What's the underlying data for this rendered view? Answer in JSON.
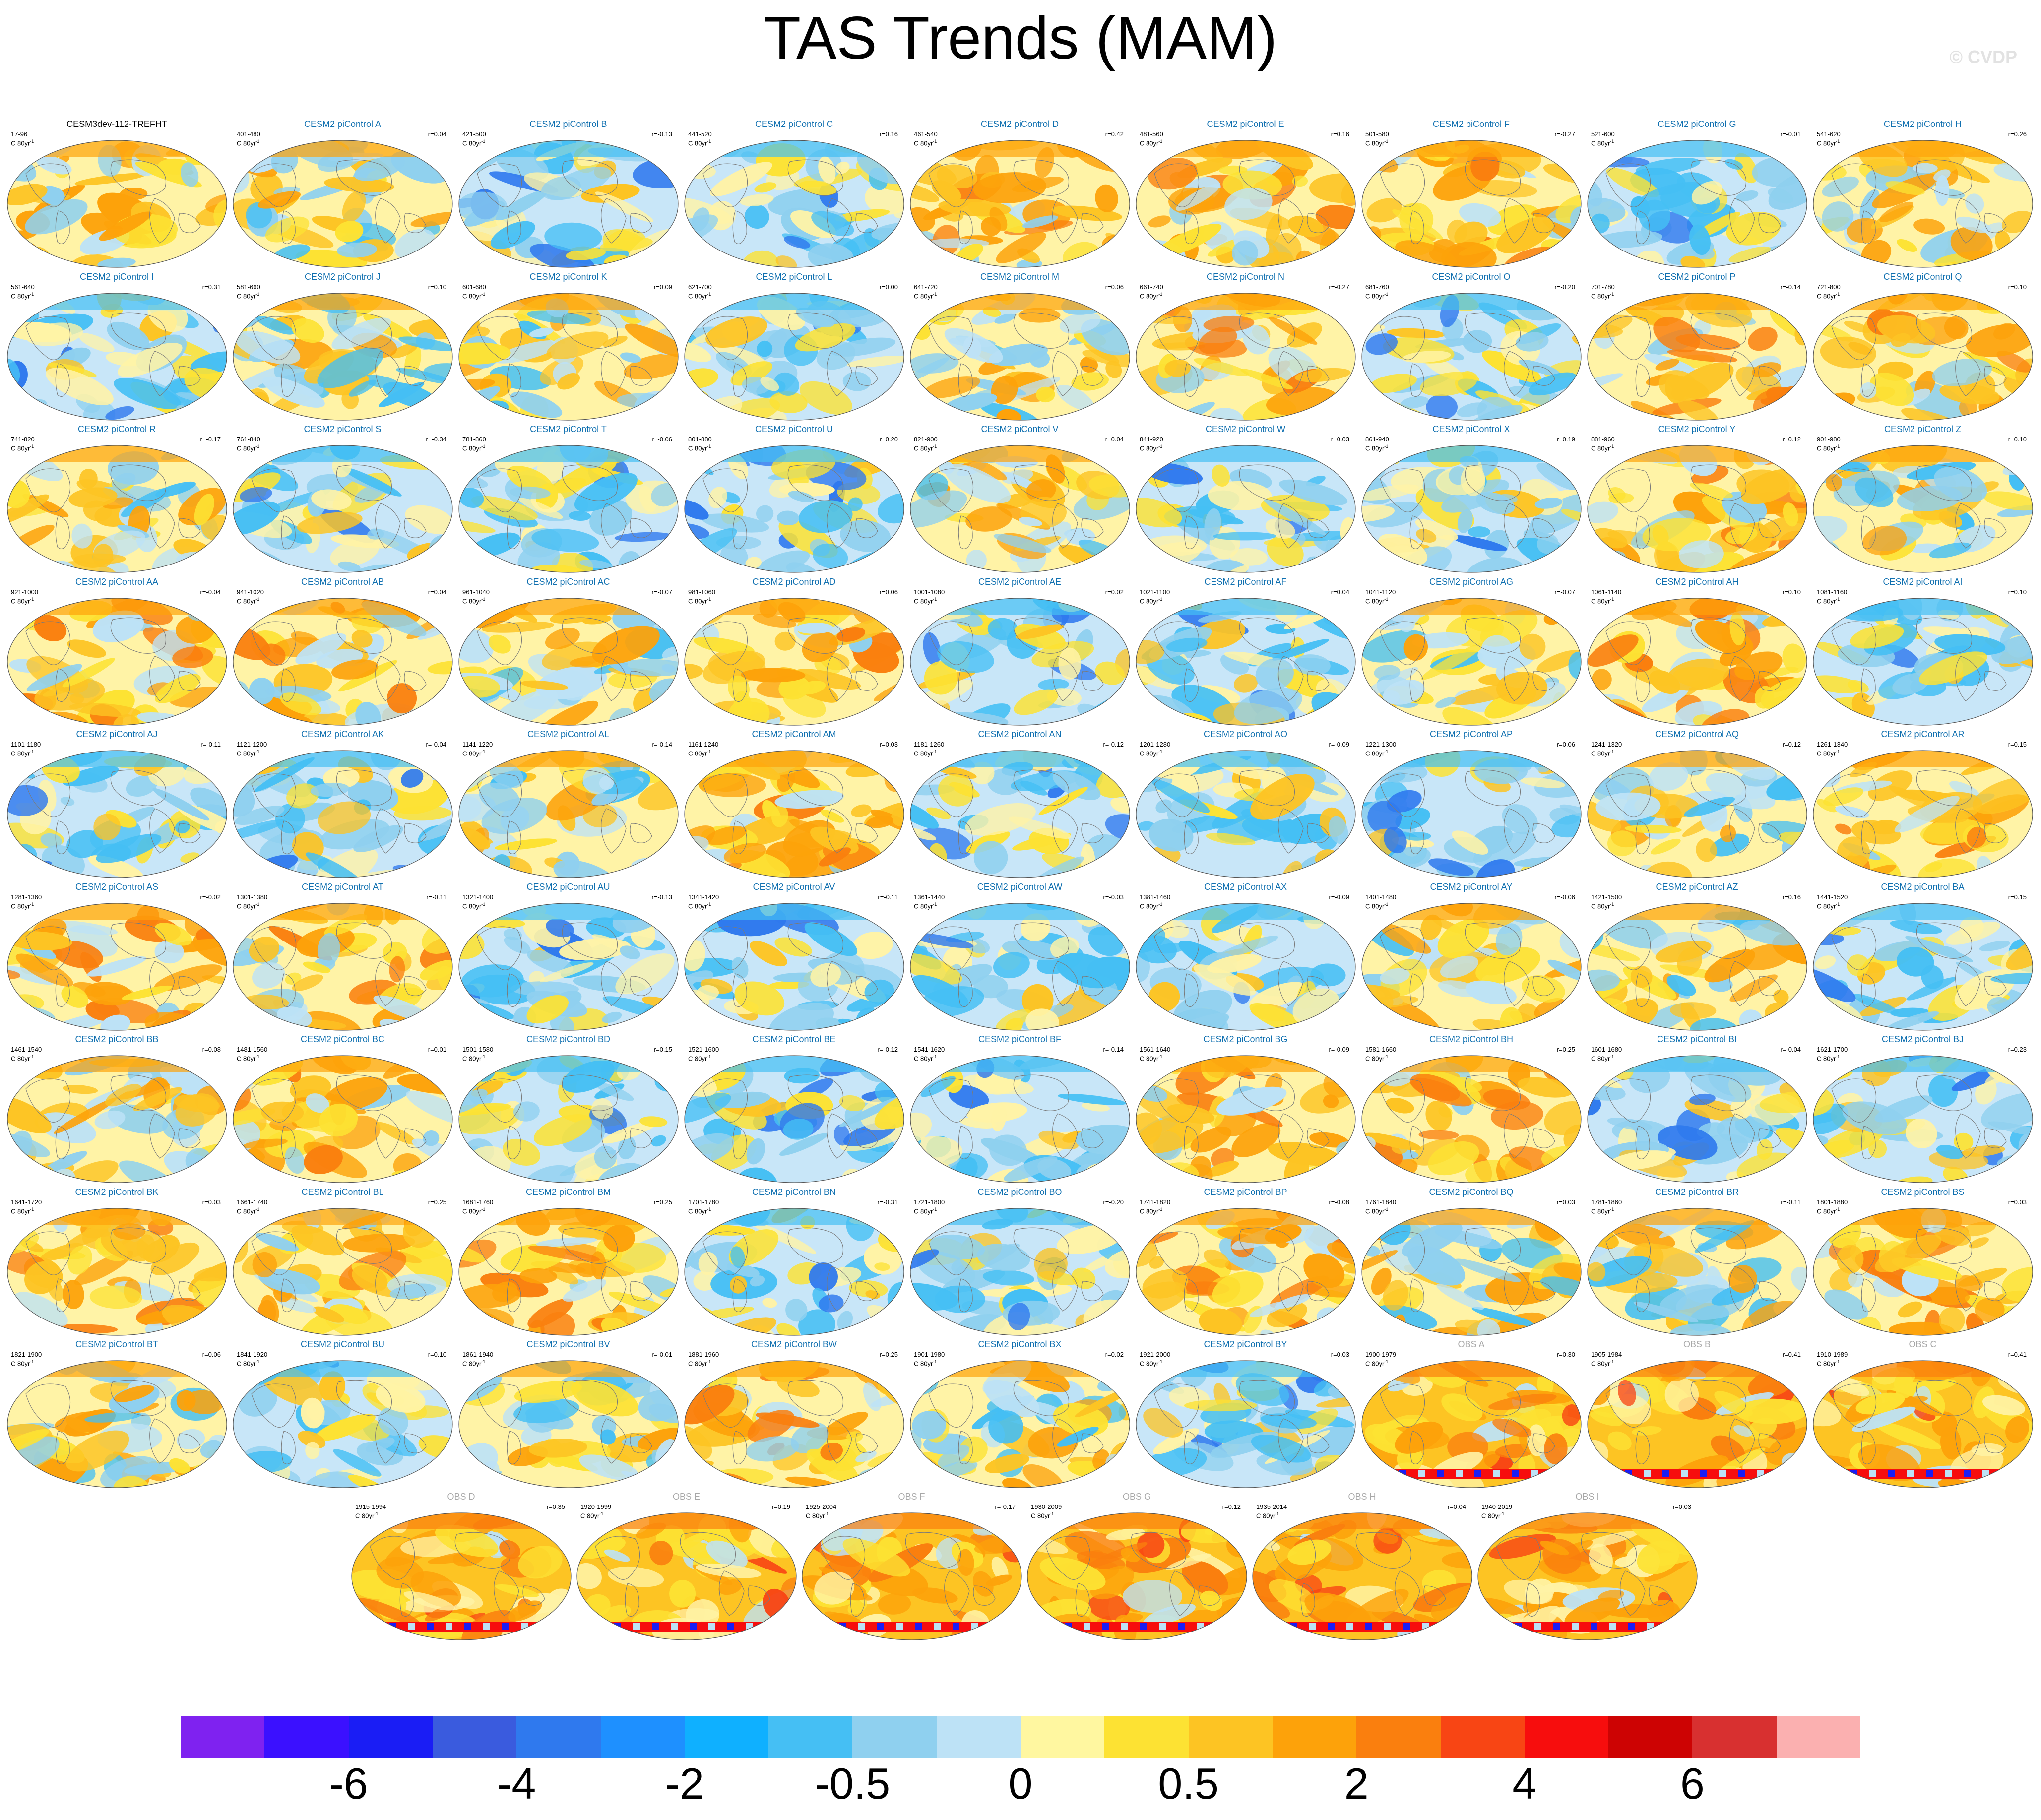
{
  "title": "TAS Trends (MAM)",
  "watermark": "© CVDP",
  "units": "C 80yr",
  "units_sup": "-1",
  "title_colors": {
    "first": "#000000",
    "model": "#1070b0",
    "obs": "#a8a8a8"
  },
  "panels": [
    {
      "title": "CESM3dev-112-TREFHT",
      "years": "17-96",
      "r": "",
      "kind": "first",
      "scheme": "warm"
    },
    {
      "title": "CESM2 piControl A",
      "years": "401-480",
      "r": "r=0.04",
      "kind": "model",
      "scheme": "mixed"
    },
    {
      "title": "CESM2 piControl B",
      "years": "421-500",
      "r": "r=-0.13",
      "kind": "model",
      "scheme": "cool"
    },
    {
      "title": "CESM2 piControl C",
      "years": "441-520",
      "r": "r=0.16",
      "kind": "model",
      "scheme": "cool"
    },
    {
      "title": "CESM2 piControl D",
      "years": "461-540",
      "r": "r=0.42",
      "kind": "model",
      "scheme": "warm"
    },
    {
      "title": "CESM2 piControl E",
      "years": "481-560",
      "r": "r=0.16",
      "kind": "model",
      "scheme": "warm"
    },
    {
      "title": "CESM2 piControl F",
      "years": "501-580",
      "r": "r=-0.27",
      "kind": "model",
      "scheme": "warm"
    },
    {
      "title": "CESM2 piControl G",
      "years": "521-600",
      "r": "r=-0.01",
      "kind": "model",
      "scheme": "cool"
    },
    {
      "title": "CESM2 piControl H",
      "years": "541-620",
      "r": "r=0.26",
      "kind": "model",
      "scheme": "mixed"
    },
    {
      "title": "CESM2 piControl I",
      "years": "561-640",
      "r": "r=0.31",
      "kind": "model",
      "scheme": "cool"
    },
    {
      "title": "CESM2 piControl J",
      "years": "581-660",
      "r": "r=0.10",
      "kind": "model",
      "scheme": "mixed"
    },
    {
      "title": "CESM2 piControl K",
      "years": "601-680",
      "r": "r=0.09",
      "kind": "model",
      "scheme": "mixed"
    },
    {
      "title": "CESM2 piControl L",
      "years": "621-700",
      "r": "r=0.00",
      "kind": "model",
      "scheme": "cool"
    },
    {
      "title": "CESM2 piControl M",
      "years": "641-720",
      "r": "r=0.06",
      "kind": "model",
      "scheme": "mixed"
    },
    {
      "title": "CESM2 piControl N",
      "years": "661-740",
      "r": "r=-0.27",
      "kind": "model",
      "scheme": "warm"
    },
    {
      "title": "CESM2 piControl O",
      "years": "681-760",
      "r": "r=-0.20",
      "kind": "model",
      "scheme": "cool"
    },
    {
      "title": "CESM2 piControl P",
      "years": "701-780",
      "r": "r=-0.14",
      "kind": "model",
      "scheme": "warm"
    },
    {
      "title": "CESM2 piControl Q",
      "years": "721-800",
      "r": "r=0.10",
      "kind": "model",
      "scheme": "warm"
    },
    {
      "title": "CESM2 piControl R",
      "years": "741-820",
      "r": "r=-0.17",
      "kind": "model",
      "scheme": "mixed"
    },
    {
      "title": "CESM2 piControl S",
      "years": "761-840",
      "r": "r=-0.34",
      "kind": "model",
      "scheme": "cool"
    },
    {
      "title": "CESM2 piControl T",
      "years": "781-860",
      "r": "r=-0.06",
      "kind": "model",
      "scheme": "cool"
    },
    {
      "title": "CESM2 piControl U",
      "years": "801-880",
      "r": "r=0.20",
      "kind": "model",
      "scheme": "cool"
    },
    {
      "title": "CESM2 piControl V",
      "years": "821-900",
      "r": "r=0.04",
      "kind": "model",
      "scheme": "mixed"
    },
    {
      "title": "CESM2 piControl W",
      "years": "841-920",
      "r": "r=0.03",
      "kind": "model",
      "scheme": "cool"
    },
    {
      "title": "CESM2 piControl X",
      "years": "861-940",
      "r": "r=0.19",
      "kind": "model",
      "scheme": "cool"
    },
    {
      "title": "CESM2 piControl Y",
      "years": "881-960",
      "r": "r=0.12",
      "kind": "model",
      "scheme": "warm"
    },
    {
      "title": "CESM2 piControl Z",
      "years": "901-980",
      "r": "r=0.10",
      "kind": "model",
      "scheme": "mixed"
    },
    {
      "title": "CESM2 piControl AA",
      "years": "921-1000",
      "r": "r=-0.04",
      "kind": "model",
      "scheme": "warm"
    },
    {
      "title": "CESM2 piControl AB",
      "years": "941-1020",
      "r": "r=0.04",
      "kind": "model",
      "scheme": "warm"
    },
    {
      "title": "CESM2 piControl AC",
      "years": "961-1040",
      "r": "r=-0.07",
      "kind": "model",
      "scheme": "mixed"
    },
    {
      "title": "CESM2 piControl AD",
      "years": "981-1060",
      "r": "r=0.06",
      "kind": "model",
      "scheme": "warm"
    },
    {
      "title": "CESM2 piControl AE",
      "years": "1001-1080",
      "r": "r=0.02",
      "kind": "model",
      "scheme": "cool"
    },
    {
      "title": "CESM2 piControl AF",
      "years": "1021-1100",
      "r": "r=0.04",
      "kind": "model",
      "scheme": "cool"
    },
    {
      "title": "CESM2 piControl AG",
      "years": "1041-1120",
      "r": "r=-0.07",
      "kind": "model",
      "scheme": "mixed"
    },
    {
      "title": "CESM2 piControl AH",
      "years": "1061-1140",
      "r": "r=0.10",
      "kind": "model",
      "scheme": "warm"
    },
    {
      "title": "CESM2 piControl AI",
      "years": "1081-1160",
      "r": "r=0.10",
      "kind": "model",
      "scheme": "cool"
    },
    {
      "title": "CESM2 piControl AJ",
      "years": "1101-1180",
      "r": "r=-0.11",
      "kind": "model",
      "scheme": "cool"
    },
    {
      "title": "CESM2 piControl AK",
      "years": "1121-1200",
      "r": "r=-0.04",
      "kind": "model",
      "scheme": "cool"
    },
    {
      "title": "CESM2 piControl AL",
      "years": "1141-1220",
      "r": "r=-0.14",
      "kind": "model",
      "scheme": "mixed"
    },
    {
      "title": "CESM2 piControl AM",
      "years": "1161-1240",
      "r": "r=0.03",
      "kind": "model",
      "scheme": "warm"
    },
    {
      "title": "CESM2 piControl AN",
      "years": "1181-1260",
      "r": "r=-0.12",
      "kind": "model",
      "scheme": "cool"
    },
    {
      "title": "CESM2 piControl AO",
      "years": "1201-1280",
      "r": "r=-0.09",
      "kind": "model",
      "scheme": "cool"
    },
    {
      "title": "CESM2 piControl AP",
      "years": "1221-1300",
      "r": "r=0.06",
      "kind": "model",
      "scheme": "cool"
    },
    {
      "title": "CESM2 piControl AQ",
      "years": "1241-1320",
      "r": "r=0.12",
      "kind": "model",
      "scheme": "mixed"
    },
    {
      "title": "CESM2 piControl AR",
      "years": "1261-1340",
      "r": "r=0.15",
      "kind": "model",
      "scheme": "warm"
    },
    {
      "title": "CESM2 piControl AS",
      "years": "1281-1360",
      "r": "r=-0.02",
      "kind": "model",
      "scheme": "warm"
    },
    {
      "title": "CESM2 piControl AT",
      "years": "1301-1380",
      "r": "r=-0.11",
      "kind": "model",
      "scheme": "warm"
    },
    {
      "title": "CESM2 piControl AU",
      "years": "1321-1400",
      "r": "r=-0.13",
      "kind": "model",
      "scheme": "cool"
    },
    {
      "title": "CESM2 piControl AV",
      "years": "1341-1420",
      "r": "r=-0.11",
      "kind": "model",
      "scheme": "cool"
    },
    {
      "title": "CESM2 piControl AW",
      "years": "1361-1440",
      "r": "r=-0.03",
      "kind": "model",
      "scheme": "cool"
    },
    {
      "title": "CESM2 piControl AX",
      "years": "1381-1460",
      "r": "r=-0.09",
      "kind": "model",
      "scheme": "cool"
    },
    {
      "title": "CESM2 piControl AY",
      "years": "1401-1480",
      "r": "r=-0.06",
      "kind": "model",
      "scheme": "mixed"
    },
    {
      "title": "CESM2 piControl AZ",
      "years": "1421-1500",
      "r": "r=0.16",
      "kind": "model",
      "scheme": "mixed"
    },
    {
      "title": "CESM2 piControl BA",
      "years": "1441-1520",
      "r": "r=0.15",
      "kind": "model",
      "scheme": "cool"
    },
    {
      "title": "CESM2 piControl BB",
      "years": "1461-1540",
      "r": "r=0.08",
      "kind": "model",
      "scheme": "mixed"
    },
    {
      "title": "CESM2 piControl BC",
      "years": "1481-1560",
      "r": "r=0.01",
      "kind": "model",
      "scheme": "warm"
    },
    {
      "title": "CESM2 piControl BD",
      "years": "1501-1580",
      "r": "r=0.15",
      "kind": "model",
      "scheme": "cool"
    },
    {
      "title": "CESM2 piControl BE",
      "years": "1521-1600",
      "r": "r=-0.12",
      "kind": "model",
      "scheme": "cool"
    },
    {
      "title": "CESM2 piControl BF",
      "years": "1541-1620",
      "r": "r=-0.14",
      "kind": "model",
      "scheme": "cool"
    },
    {
      "title": "CESM2 piControl BG",
      "years": "1561-1640",
      "r": "r=-0.09",
      "kind": "model",
      "scheme": "warm"
    },
    {
      "title": "CESM2 piControl BH",
      "years": "1581-1660",
      "r": "r=0.25",
      "kind": "model",
      "scheme": "warm"
    },
    {
      "title": "CESM2 piControl BI",
      "years": "1601-1680",
      "r": "r=-0.04",
      "kind": "model",
      "scheme": "cool"
    },
    {
      "title": "CESM2 piControl BJ",
      "years": "1621-1700",
      "r": "r=0.23",
      "kind": "model",
      "scheme": "cool"
    },
    {
      "title": "CESM2 piControl BK",
      "years": "1641-1720",
      "r": "r=0.03",
      "kind": "model",
      "scheme": "warm"
    },
    {
      "title": "CESM2 piControl BL",
      "years": "1661-1740",
      "r": "r=0.25",
      "kind": "model",
      "scheme": "warm"
    },
    {
      "title": "CESM2 piControl BM",
      "years": "1681-1760",
      "r": "r=0.25",
      "kind": "model",
      "scheme": "warm"
    },
    {
      "title": "CESM2 piControl BN",
      "years": "1701-1780",
      "r": "r=-0.31",
      "kind": "model",
      "scheme": "cool"
    },
    {
      "title": "CESM2 piControl BO",
      "years": "1721-1800",
      "r": "r=-0.20",
      "kind": "model",
      "scheme": "cool"
    },
    {
      "title": "CESM2 piControl BP",
      "years": "1741-1820",
      "r": "r=-0.08",
      "kind": "model",
      "scheme": "warm"
    },
    {
      "title": "CESM2 piControl BQ",
      "years": "1761-1840",
      "r": "r=0.03",
      "kind": "model",
      "scheme": "mixed"
    },
    {
      "title": "CESM2 piControl BR",
      "years": "1781-1860",
      "r": "r=-0.11",
      "kind": "model",
      "scheme": "mixed"
    },
    {
      "title": "CESM2 piControl BS",
      "years": "1801-1880",
      "r": "r=0.03",
      "kind": "model",
      "scheme": "warm"
    },
    {
      "title": "CESM2 piControl BT",
      "years": "1821-1900",
      "r": "r=0.06",
      "kind": "model",
      "scheme": "mixed"
    },
    {
      "title": "CESM2 piControl BU",
      "years": "1841-1920",
      "r": "r=0.10",
      "kind": "model",
      "scheme": "cool"
    },
    {
      "title": "CESM2 piControl BV",
      "years": "1861-1940",
      "r": "r=-0.01",
      "kind": "model",
      "scheme": "mixed"
    },
    {
      "title": "CESM2 piControl BW",
      "years": "1881-1960",
      "r": "r=0.25",
      "kind": "model",
      "scheme": "warm"
    },
    {
      "title": "CESM2 piControl BX",
      "years": "1901-1980",
      "r": "r=0.02",
      "kind": "model",
      "scheme": "mixed"
    },
    {
      "title": "CESM2 piControl BY",
      "years": "1921-2000",
      "r": "r=0.03",
      "kind": "model",
      "scheme": "cool"
    },
    {
      "title": "OBS A",
      "years": "1900-1979",
      "r": "r=0.30",
      "kind": "obs",
      "scheme": "obs"
    },
    {
      "title": "OBS B",
      "years": "1905-1984",
      "r": "r=0.41",
      "kind": "obs",
      "scheme": "obs"
    },
    {
      "title": "OBS C",
      "years": "1910-1989",
      "r": "r=0.41",
      "kind": "obs",
      "scheme": "obs"
    },
    {
      "title": "OBS D",
      "years": "1915-1994",
      "r": "r=0.35",
      "kind": "obs",
      "scheme": "obs"
    },
    {
      "title": "OBS E",
      "years": "1920-1999",
      "r": "r=0.19",
      "kind": "obs",
      "scheme": "obs"
    },
    {
      "title": "OBS F",
      "years": "1925-2004",
      "r": "r=-0.17",
      "kind": "obs",
      "scheme": "obs"
    },
    {
      "title": "OBS G",
      "years": "1930-2009",
      "r": "r=0.12",
      "kind": "obs",
      "scheme": "obs"
    },
    {
      "title": "OBS H",
      "years": "1935-2014",
      "r": "r=0.04",
      "kind": "obs",
      "scheme": "obs"
    },
    {
      "title": "OBS I",
      "years": "1940-2019",
      "r": "r=0.03",
      "kind": "obs",
      "scheme": "obs"
    }
  ],
  "colorbar": {
    "colors": [
      "#7f22f0",
      "#3b10ff",
      "#1a1df5",
      "#3a5bde",
      "#2f79ee",
      "#1e90ff",
      "#0fb0ff",
      "#45bff4",
      "#8fd0ef",
      "#bde2f6",
      "#fff7a0",
      "#fde233",
      "#fdc423",
      "#fda20a",
      "#fa7f0e",
      "#f84514",
      "#f70d0d",
      "#cd0303",
      "#d83030",
      "#fbb0b0"
    ],
    "labels": [
      "-6",
      "-4",
      "-2",
      "-0.5",
      "0",
      "0.5",
      "2",
      "4",
      "6"
    ]
  }
}
